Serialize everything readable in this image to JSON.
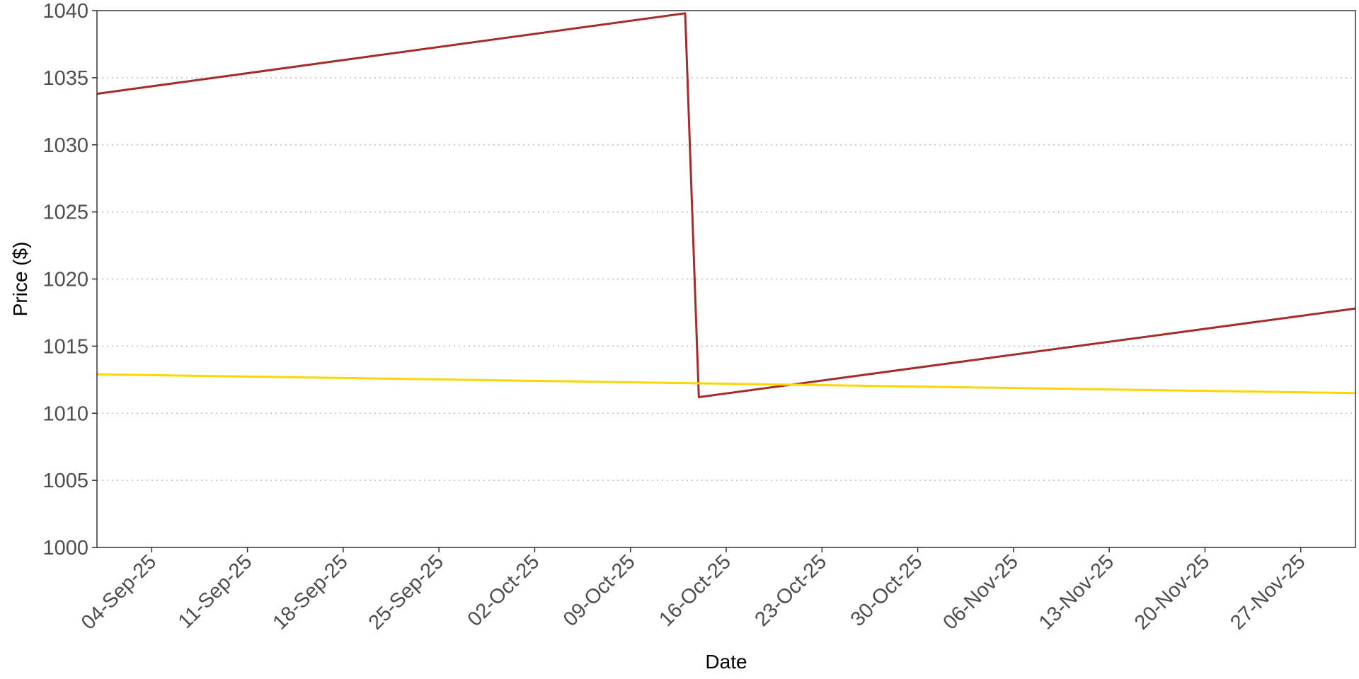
{
  "chart_data": {
    "type": "line",
    "title": "",
    "xlabel": "Date",
    "ylabel": "Price ($)",
    "ylim": [
      1000,
      1040
    ],
    "xlim": [
      "2025-08-31",
      "2025-12-01"
    ],
    "y_ticks": [
      1000,
      1005,
      1010,
      1015,
      1020,
      1025,
      1030,
      1035,
      1040
    ],
    "x_ticks": [
      {
        "date": "2025-09-04",
        "label": "04-Sep-25"
      },
      {
        "date": "2025-09-11",
        "label": "11-Sep-25"
      },
      {
        "date": "2025-09-18",
        "label": "18-Sep-25"
      },
      {
        "date": "2025-09-25",
        "label": "25-Sep-25"
      },
      {
        "date": "2025-10-02",
        "label": "02-Oct-25"
      },
      {
        "date": "2025-10-09",
        "label": "09-Oct-25"
      },
      {
        "date": "2025-10-16",
        "label": "16-Oct-25"
      },
      {
        "date": "2025-10-23",
        "label": "23-Oct-25"
      },
      {
        "date": "2025-10-30",
        "label": "30-Oct-25"
      },
      {
        "date": "2025-11-06",
        "label": "06-Nov-25"
      },
      {
        "date": "2025-11-13",
        "label": "13-Nov-25"
      },
      {
        "date": "2025-11-20",
        "label": "20-Nov-25"
      },
      {
        "date": "2025-11-27",
        "label": "27-Nov-25"
      }
    ],
    "grid": {
      "horizontal": true,
      "vertical": false,
      "style": "dotted"
    },
    "legend": "none",
    "series": [
      {
        "color": "#A52A2A",
        "points": [
          {
            "x": "2025-08-31",
            "y": 1033.8
          },
          {
            "x": "2025-10-13",
            "y": 1039.8
          },
          {
            "x": "2025-10-14",
            "y": 1011.2
          },
          {
            "x": "2025-12-01",
            "y": 1017.8
          }
        ]
      },
      {
        "color": "#FFD700",
        "points": [
          {
            "x": "2025-08-31",
            "y": 1012.9
          },
          {
            "x": "2025-12-01",
            "y": 1011.5
          }
        ]
      }
    ]
  }
}
